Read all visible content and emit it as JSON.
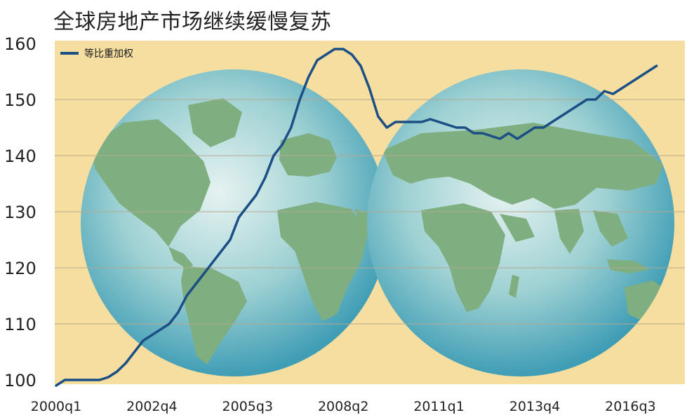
{
  "title": "全球房地产市场继续缓慢复苏",
  "colors": {
    "plot_background": "#f5dea0",
    "line": "#1c4f86",
    "grid": "#b3a991",
    "ocean_center": "#e6f2f1",
    "ocean_mid": "#9ed1d3",
    "ocean_edge": "#3f9db5",
    "land": "#7fae80"
  },
  "background_image": "two-hemisphere-world-map",
  "chart_data": {
    "type": "line",
    "title": "全球房地产市场继续缓慢复苏",
    "xlabel": "",
    "ylabel": "",
    "ylim": [
      100,
      160
    ],
    "yticks": [
      100,
      110,
      120,
      130,
      140,
      150,
      160
    ],
    "xtick_labels": [
      "2000q1",
      "2002q4",
      "2005q3",
      "2008q2",
      "2011q1",
      "2013q4",
      "2016q3"
    ],
    "grid": true,
    "legend_position": "top-left",
    "series": [
      {
        "name": "等比重加权",
        "x": [
          "2000q1",
          "2000q2",
          "2000q3",
          "2000q4",
          "2001q1",
          "2001q2",
          "2001q3",
          "2001q4",
          "2002q1",
          "2002q2",
          "2002q3",
          "2002q4",
          "2003q1",
          "2003q2",
          "2003q3",
          "2003q4",
          "2004q1",
          "2004q2",
          "2004q3",
          "2004q4",
          "2005q1",
          "2005q2",
          "2005q3",
          "2005q4",
          "2006q1",
          "2006q2",
          "2006q3",
          "2006q4",
          "2007q1",
          "2007q2",
          "2007q3",
          "2007q4",
          "2008q1",
          "2008q2",
          "2008q3",
          "2008q4",
          "2009q1",
          "2009q2",
          "2009q3",
          "2009q4",
          "2010q1",
          "2010q2",
          "2010q3",
          "2010q4",
          "2011q1",
          "2011q2",
          "2011q3",
          "2011q4",
          "2012q1",
          "2012q2",
          "2012q3",
          "2012q4",
          "2013q1",
          "2013q2",
          "2013q3",
          "2013q4",
          "2014q1",
          "2014q2",
          "2014q3",
          "2014q4",
          "2015q1",
          "2015q2",
          "2015q3",
          "2015q4",
          "2016q1",
          "2016q2",
          "2016q3",
          "2016q4",
          "2017q1",
          "2017q2"
        ],
        "values": [
          99,
          100,
          100,
          100,
          100,
          100,
          100.5,
          101.5,
          103,
          105,
          107,
          108,
          109,
          110,
          112,
          115,
          117,
          119,
          121,
          123,
          125,
          129,
          131,
          133,
          136,
          140,
          142,
          145,
          150,
          154,
          157,
          158,
          159,
          159,
          158,
          156,
          152,
          147,
          145,
          146,
          146,
          146,
          146,
          146.5,
          146,
          145.5,
          145,
          145,
          144,
          144,
          143.5,
          143,
          144,
          143,
          144,
          145,
          145,
          146,
          147,
          148,
          149,
          150,
          150,
          151.5,
          151,
          152,
          153,
          154,
          155,
          156
        ]
      }
    ]
  }
}
